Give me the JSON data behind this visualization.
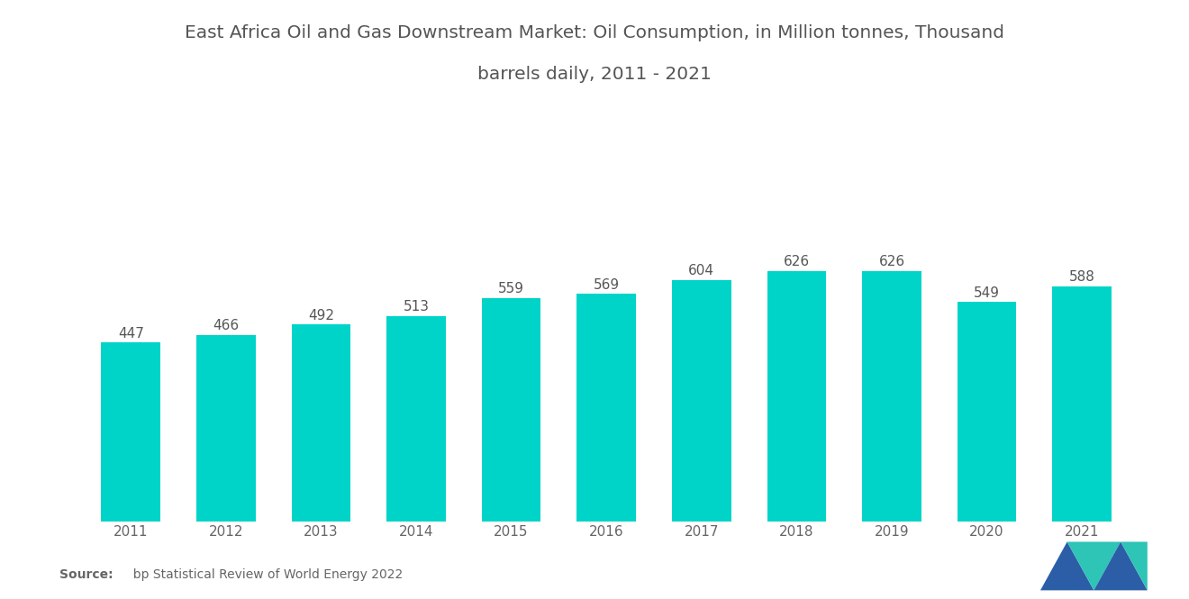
{
  "title_line1": "East Africa Oil and Gas Downstream Market: Oil Consumption, in Million tonnes, Thousand",
  "title_line2": "barrels daily, 2011 - 2021",
  "years": [
    2011,
    2012,
    2013,
    2014,
    2015,
    2016,
    2017,
    2018,
    2019,
    2020,
    2021
  ],
  "values": [
    447,
    466,
    492,
    513,
    559,
    569,
    604,
    626,
    626,
    549,
    588
  ],
  "bar_color": "#00d4c8",
  "background_color": "#ffffff",
  "title_fontsize": 14.5,
  "label_fontsize": 11,
  "tick_fontsize": 11,
  "source_bold": "Source:",
  "source_normal": "  bp Statistical Review of World Energy 2022",
  "ylim": [
    0,
    780
  ],
  "bar_width": 0.62,
  "title_color": "#555555",
  "tick_color": "#666666",
  "value_label_color": "#555555",
  "source_fontsize": 10,
  "logo_blue": "#2b5ea7",
  "logo_teal": "#2ec4b6"
}
